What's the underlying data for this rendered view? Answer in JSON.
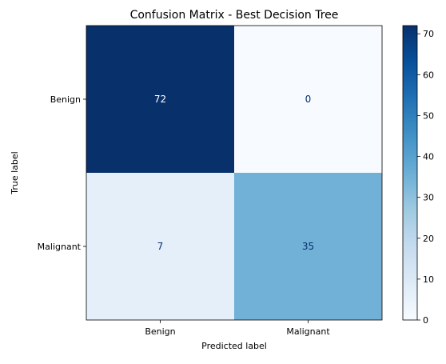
{
  "chart_data": {
    "type": "heatmap",
    "title": "Confusion Matrix - Best Decision Tree",
    "xlabel": "Predicted label",
    "ylabel": "True label",
    "x_categories": [
      "Benign",
      "Malignant"
    ],
    "y_categories": [
      "Benign",
      "Malignant"
    ],
    "matrix": [
      [
        72,
        0
      ],
      [
        7,
        35
      ]
    ],
    "colormap": "Blues",
    "colorbar": {
      "min": 0,
      "max": 72,
      "ticks": [
        0,
        10,
        20,
        30,
        40,
        50,
        60,
        70
      ]
    }
  }
}
